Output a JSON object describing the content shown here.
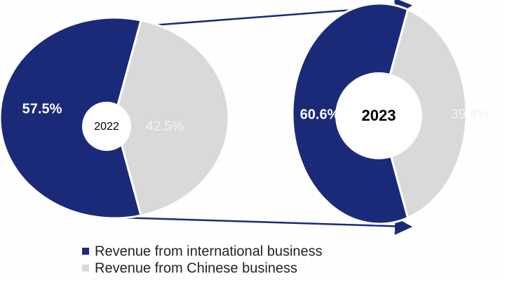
{
  "chart_data": {
    "type": "pie",
    "categories": [
      "Revenue from international business",
      "Revenue from Chinese business"
    ],
    "colors": [
      "#1b2a78",
      "#d9d9d9"
    ],
    "series": [
      {
        "name": "2022",
        "values": [
          57.5,
          42.5
        ],
        "value_labels": [
          "57.5%",
          "42.5%"
        ]
      },
      {
        "name": "2023",
        "values": [
          60.6,
          39.4
        ],
        "value_labels": [
          "60.6%",
          "39.4%"
        ]
      }
    ]
  }
}
